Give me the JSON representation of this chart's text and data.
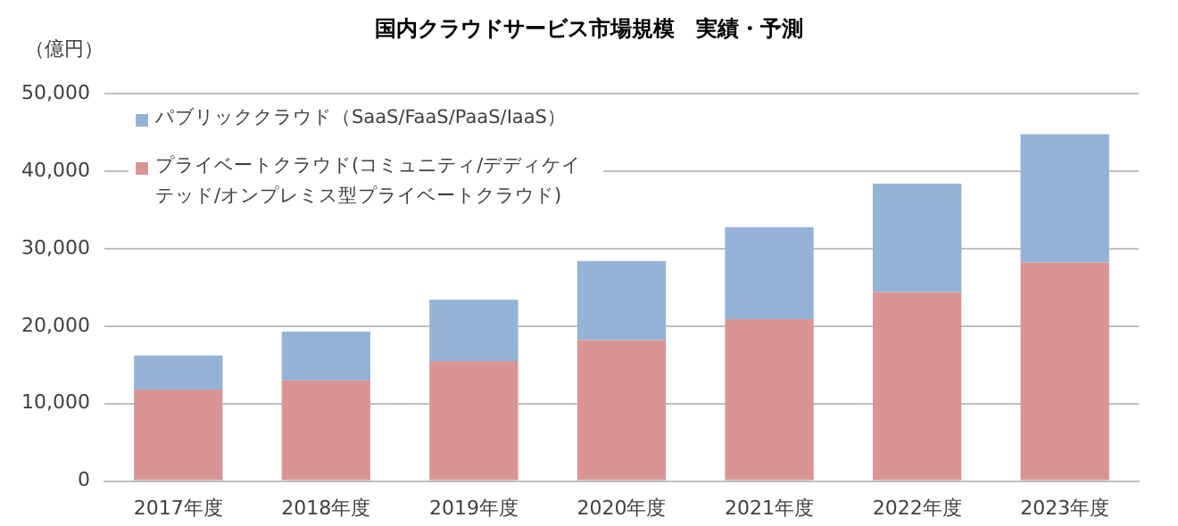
{
  "chart_data": {
    "type": "bar",
    "title": "国内クラウドサービス市場規模　実績・予測",
    "ylabel": "（億円）",
    "categories": [
      "2017年度",
      "2018年度",
      "2019年度",
      "2020年度",
      "2021年度",
      "2022年度",
      "2023年度"
    ],
    "stacked": true,
    "ylim": [
      0,
      50000
    ],
    "yticks": [
      0,
      {
        "value": 10000,
        "label": "10,000"
      },
      {
        "value": 20000,
        "label": "20,000"
      },
      {
        "value": 30000,
        "label": "30,000"
      },
      {
        "value": 40000,
        "label": "40,000"
      },
      {
        "value": 50000,
        "label": "50,000"
      }
    ],
    "grid": "y",
    "legend": "top left",
    "series": [
      {
        "name": "プライベートクラウド(コミュニティ/デディケイテッド/オンプレミス型プライベートクラウド)",
        "color": "#d99594",
        "values": [
          11800,
          13000,
          15500,
          18200,
          20900,
          24400,
          28200
        ]
      },
      {
        "name": "パブリッククラウド（SaaS/FaaS/PaaS/IaaS）",
        "color": "#95b3d7",
        "values": [
          4400,
          6300,
          7900,
          10200,
          11900,
          14000,
          16600
        ]
      }
    ]
  }
}
